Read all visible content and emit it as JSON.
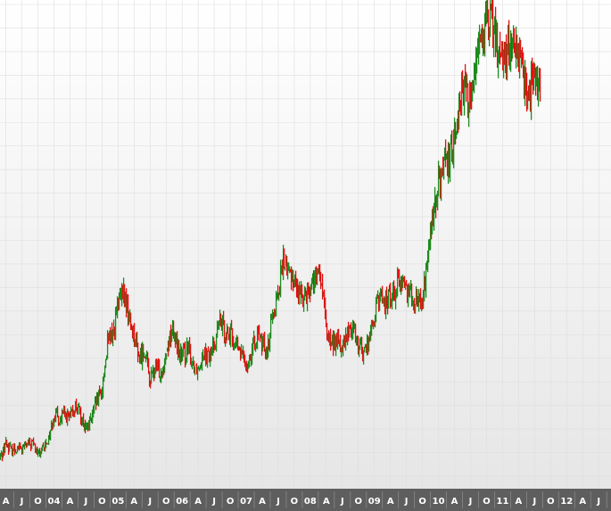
{
  "chart_data": {
    "type": "candlestick",
    "title": "",
    "xlabel": "",
    "ylabel": "",
    "grid": true,
    "legend": "none",
    "colors": {
      "up": "#1f8a1f",
      "down": "#e01010",
      "axis_bar": "#5e5e5e",
      "grid": "#dedede"
    },
    "x_ticks": [
      "A",
      "J",
      "O",
      "04",
      "A",
      "J",
      "O",
      "05",
      "A",
      "J",
      "O",
      "06",
      "A",
      "J",
      "O",
      "07",
      "A",
      "J",
      "O",
      "08",
      "A",
      "J",
      "O",
      "09",
      "A",
      "J",
      "O",
      "10",
      "A",
      "J",
      "O",
      "11",
      "A",
      "J",
      "O",
      "12",
      "A",
      "J"
    ],
    "x_tick_months": [
      4,
      7,
      10,
      13,
      16,
      19,
      22,
      25,
      28,
      31,
      34,
      37,
      40,
      43,
      46,
      49,
      52,
      55,
      58,
      61,
      64,
      67,
      70,
      73,
      76,
      79,
      82,
      85,
      88,
      91,
      94,
      97,
      100,
      103,
      106,
      109,
      112,
      115
    ],
    "x_range_months": [
      2.9,
      117.3
    ],
    "y_range": [
      0,
      100
    ],
    "price_path": {
      "month": [
        3,
        4,
        5,
        6,
        7,
        8,
        9,
        10,
        11,
        12,
        13,
        14,
        15,
        16,
        17,
        18,
        19,
        20,
        21,
        22,
        23,
        24,
        25,
        26,
        27,
        28,
        29,
        30,
        31,
        32,
        33,
        34,
        35,
        36,
        37,
        38,
        39,
        40,
        41,
        42,
        43,
        44,
        45,
        46,
        47,
        48,
        49,
        50,
        51,
        52,
        53,
        54,
        55,
        56,
        57,
        58,
        59,
        60,
        61,
        62,
        63,
        64,
        65,
        66,
        67,
        68,
        69,
        70,
        71,
        72,
        73,
        74,
        75,
        76,
        77,
        78,
        79,
        80,
        81,
        82,
        83,
        84,
        85,
        86,
        87,
        88,
        89,
        90,
        91,
        92,
        93,
        94,
        95,
        96,
        97,
        98,
        99,
        100,
        101,
        102,
        103,
        104
      ],
      "close": [
        4,
        7,
        5.5,
        6,
        5.8,
        6.5,
        7,
        4.5,
        5.5,
        8,
        13,
        12,
        13,
        12,
        15,
        13,
        10,
        12,
        16,
        18,
        28,
        30,
        36,
        39,
        34,
        30,
        25,
        27,
        20,
        23,
        22,
        26,
        31,
        28,
        25,
        27,
        24,
        23,
        27,
        25,
        28,
        33,
        31,
        30,
        28,
        26,
        24,
        26,
        30,
        28,
        27,
        35,
        39,
        46,
        43,
        42,
        38,
        39,
        40,
        42,
        42,
        31,
        28,
        29,
        27,
        30,
        32,
        28,
        26,
        29,
        34,
        38,
        37,
        38,
        40,
        42,
        40,
        39,
        37,
        37,
        47,
        55,
        62,
        65,
        66,
        73,
        80,
        82,
        78,
        90,
        95,
        94,
        97,
        91,
        89,
        90,
        92,
        88,
        85,
        80,
        85,
        82
      ]
    }
  }
}
